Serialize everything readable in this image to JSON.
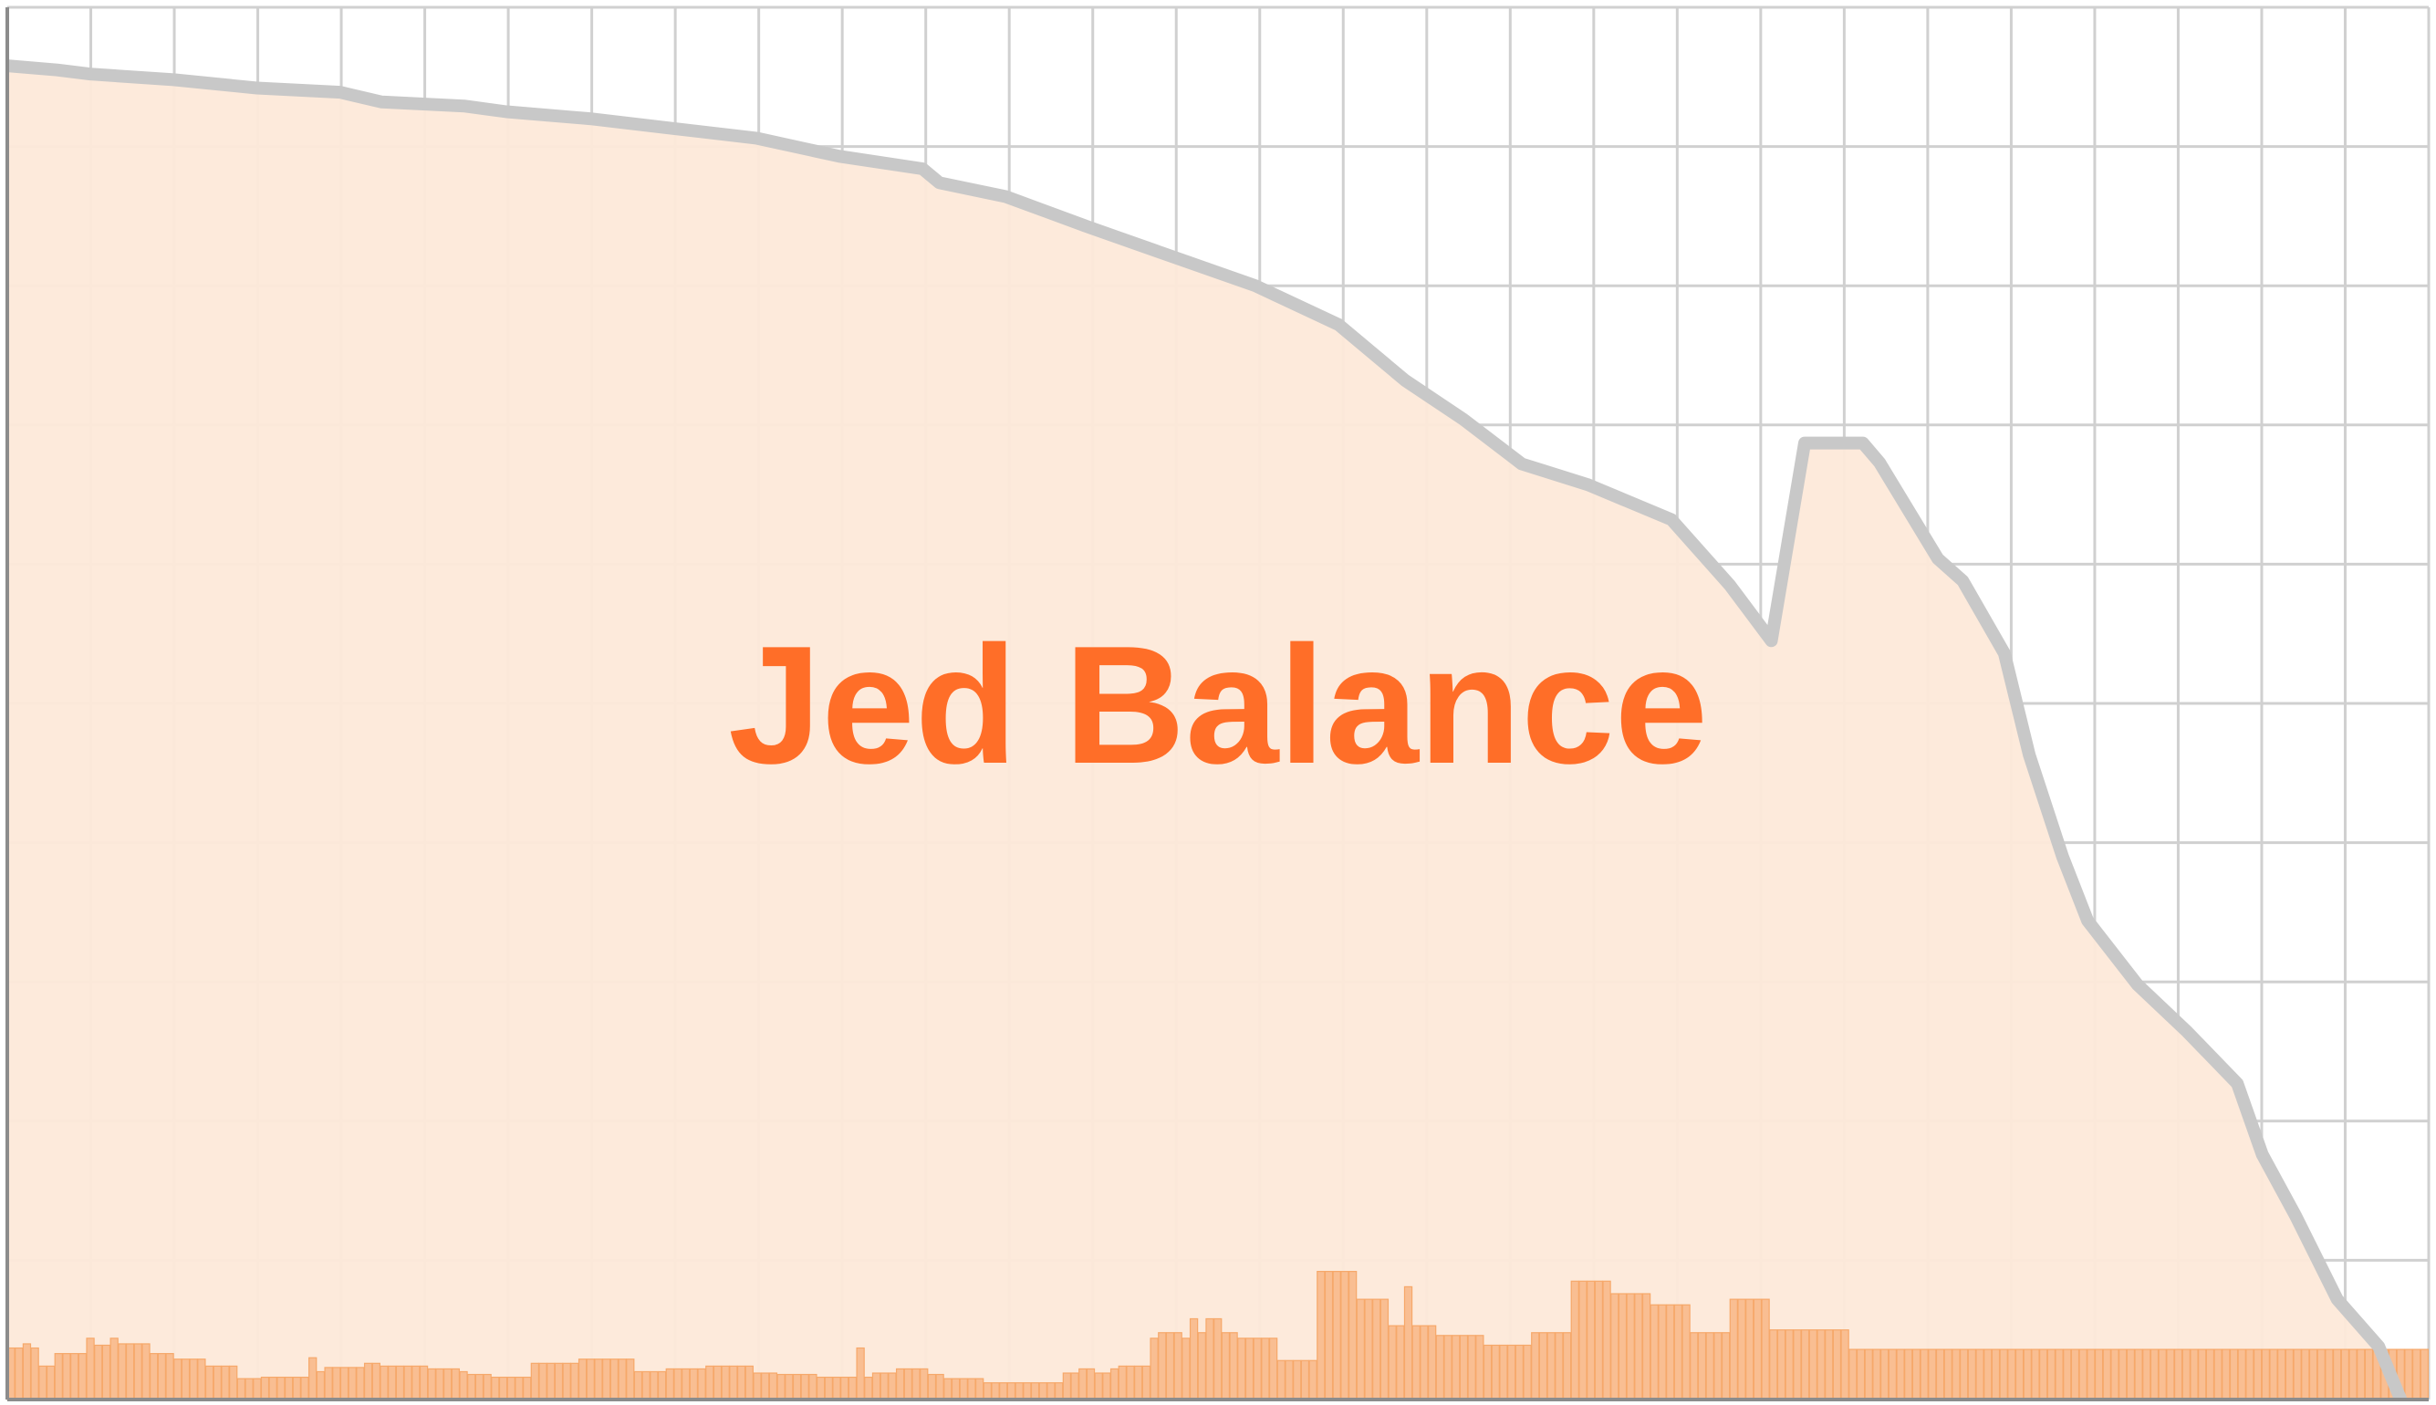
{
  "chart_data": {
    "type": "bar",
    "title": "Jed Balance",
    "xlabel": "",
    "ylabel": "",
    "grid": true,
    "legend": "none",
    "xlim": [
      0,
      291
    ],
    "ylim": [
      0,
      100
    ],
    "x_gridlines": 29,
    "y_gridlines": 10,
    "colors": {
      "title": "#ff6e28",
      "area_fill": "#fde9d9",
      "bar_fill": "#f9be92",
      "bar_stroke": "#f6a86a",
      "line": "#c8c8c8",
      "grid": "#d0d0d0",
      "axis": "#8c8c8c"
    },
    "series": [
      {
        "kind": "bar",
        "values": [
          3.7,
          3.7,
          4,
          3.7,
          2.4,
          2.4,
          3.3,
          3.3,
          3.3,
          3.3,
          4.4,
          3.9,
          3.9,
          4.4,
          4,
          4,
          4,
          4,
          3.3,
          3.3,
          3.3,
          2.9,
          2.9,
          2.9,
          2.9,
          2.4,
          2.4,
          2.4,
          2.4,
          1.5,
          1.5,
          1.5,
          1.6,
          1.6,
          1.6,
          1.6,
          1.6,
          1.6,
          3,
          2,
          2.3,
          2.3,
          2.3,
          2.3,
          2.3,
          2.6,
          2.6,
          2.4,
          2.4,
          2.4,
          2.4,
          2.4,
          2.4,
          2.2,
          2.2,
          2.2,
          2.2,
          2,
          1.8,
          1.8,
          1.8,
          1.6,
          1.6,
          1.6,
          1.6,
          1.6,
          2.6,
          2.6,
          2.6,
          2.6,
          2.6,
          2.6,
          2.9,
          2.9,
          2.9,
          2.9,
          2.9,
          2.9,
          2.9,
          2,
          2,
          2,
          2,
          2.2,
          2.2,
          2.2,
          2.2,
          2.2,
          2.4,
          2.4,
          2.4,
          2.4,
          2.4,
          2.4,
          1.9,
          1.9,
          1.9,
          1.8,
          1.8,
          1.8,
          1.8,
          1.8,
          1.6,
          1.6,
          1.6,
          1.6,
          1.6,
          3.7,
          1.6,
          1.9,
          1.9,
          1.9,
          2.2,
          2.2,
          2.2,
          2.2,
          1.8,
          1.8,
          1.5,
          1.5,
          1.5,
          1.5,
          1.5,
          1.2,
          1.2,
          1.2,
          1.2,
          1.2,
          1.2,
          1.2,
          1.2,
          1.2,
          1.2,
          1.9,
          1.9,
          2.2,
          2.2,
          1.9,
          1.9,
          2.2,
          2.4,
          2.4,
          2.4,
          2.4,
          4.4,
          4.8,
          4.8,
          4.8,
          4.4,
          5.8,
          4.8,
          5.8,
          5.8,
          4.8,
          4.8,
          4.4,
          4.4,
          4.4,
          4.4,
          4.4,
          2.8,
          2.8,
          2.8,
          2.8,
          2.8,
          9.2,
          9.2,
          9.2,
          9.2,
          9.2,
          7.2,
          7.2,
          7.2,
          7.2,
          5.3,
          5.3,
          8.1,
          5.3,
          5.3,
          5.3,
          4.6,
          4.6,
          4.6,
          4.6,
          4.6,
          4.6,
          3.9,
          3.9,
          3.9,
          3.9,
          3.9,
          3.9,
          4.8,
          4.8,
          4.8,
          4.8,
          4.8,
          8.5,
          8.5,
          8.5,
          8.5,
          8.5,
          7.6,
          7.6,
          7.6,
          7.6,
          7.6,
          6.8,
          6.8,
          6.8,
          6.8,
          6.8,
          4.8,
          4.8,
          4.8,
          4.8,
          4.8,
          7.2,
          7.2,
          7.2,
          7.2,
          7.2,
          5,
          5,
          5,
          5,
          5,
          5,
          5,
          5,
          5,
          5,
          3.6,
          3.6,
          3.6,
          3.6,
          3.6,
          3.6,
          3.6,
          3.6,
          3.6,
          3.6,
          3.6,
          3.6,
          3.6,
          3.6,
          3.6,
          3.6,
          3.6,
          3.6,
          3.6,
          3.6,
          3.6,
          3.6,
          3.6,
          3.6,
          3.6,
          3.6,
          3.6,
          3.6,
          3.6,
          3.6,
          3.6,
          3.6,
          3.6,
          3.6,
          3.6,
          3.6,
          3.6,
          3.6,
          3.6,
          3.6,
          3.6,
          3.6,
          3.6,
          3.6,
          3.6,
          3.6,
          3.6,
          3.6,
          3.6,
          3.6,
          3.6,
          3.6,
          3.6,
          3.6,
          3.6,
          3.6,
          3.6,
          3.6,
          3.6,
          3.6,
          3.6,
          3.6,
          3.6,
          3.6,
          3.6,
          3.6,
          3.6,
          3.6,
          3.6,
          3.6,
          3.6,
          3.6,
          3.6
        ]
      },
      {
        "kind": "line",
        "area": true,
        "x": [
          0,
          6,
          10,
          20,
          30,
          40,
          45,
          55,
          60,
          70,
          80,
          90,
          100,
          110,
          112,
          120,
          130,
          140,
          150,
          160,
          168,
          175,
          182,
          190,
          200,
          207,
          212,
          216,
          223,
          225,
          232,
          235,
          240,
          243,
          247,
          250,
          256,
          262,
          268,
          271,
          275,
          280,
          285,
          290
        ],
        "values": [
          95.8,
          95.5,
          95.2,
          94.8,
          94.2,
          93.9,
          93.2,
          92.9,
          92.5,
          92.0,
          91.3,
          90.6,
          89.3,
          88.4,
          87.4,
          86.4,
          84.2,
          82.1,
          80.0,
          77.2,
          73.2,
          70.4,
          67.2,
          65.7,
          63.2,
          58.5,
          54.5,
          68.7,
          68.7,
          67.3,
          60.4,
          58.8,
          53.6,
          46.3,
          39.0,
          34.4,
          29.8,
          26.4,
          22.7,
          17.6,
          13.2,
          7.2,
          3.8,
          -3.4
        ]
      }
    ]
  }
}
